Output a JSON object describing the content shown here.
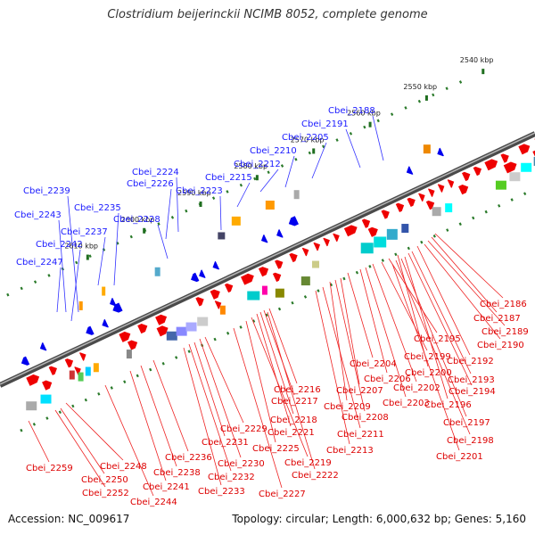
{
  "title": "Clostridium beijerinckii NCIMB 8052, complete genome",
  "footer": {
    "accession": "Accession: NC_009617",
    "summary": "Topology: circular; Length: 6,000,632 bp; Genes: 5,160"
  },
  "colors": {
    "forward_gene": "#ee0000",
    "reverse_gene": "#0000ee",
    "backbone": "#666666",
    "forward_label": "#dd0000",
    "reverse_label": "#1a1aff",
    "dotted_track": "#2a7a2a"
  },
  "ruler": [
    {
      "label": "2540 kbp",
      "kbp": 2540
    },
    {
      "label": "2550 kbp",
      "kbp": 2550
    },
    {
      "label": "2560 kbp",
      "kbp": 2560
    },
    {
      "label": "2570 kbp",
      "kbp": 2570
    },
    {
      "label": "2580 kbp",
      "kbp": 2580
    },
    {
      "label": "2590 kbp",
      "kbp": 2590
    },
    {
      "label": "2600 kbp",
      "kbp": 2600
    },
    {
      "label": "2610 kbp",
      "kbp": 2610
    }
  ],
  "reverse_labels": [
    "Cbei_2188",
    "Cbei_2191",
    "Cbei_2205",
    "Cbei_2210",
    "Cbei_2212",
    "Cbei_2215",
    "Cbei_2223",
    "Cbei_2224",
    "Cbei_2226",
    "Cbei_2228",
    "Cbei_2235",
    "Cbei_2237",
    "Cbei_2239",
    "Cbei_2243",
    "Cbei_2242",
    "Cbei_2247"
  ],
  "forward_labels": [
    "Cbei_2186",
    "Cbei_2187",
    "Cbei_2189",
    "Cbei_2190",
    "Cbei_2195",
    "Cbei_2192",
    "Cbei_2199",
    "Cbei_2193",
    "Cbei_2204",
    "Cbei_2200",
    "Cbei_2206",
    "Cbei_2194",
    "Cbei_2202",
    "Cbei_2207",
    "Cbei_2216",
    "Cbei_2196",
    "Cbei_2203",
    "Cbei_2217",
    "Cbei_2209",
    "Cbei_2197",
    "Cbei_2208",
    "Cbei_2218",
    "Cbei_2229",
    "Cbei_2211",
    "Cbei_2221",
    "Cbei_2198",
    "Cbei_2231",
    "Cbei_2225",
    "Cbei_2213",
    "Cbei_2236",
    "Cbei_2201",
    "Cbei_2230",
    "Cbei_2219",
    "Cbei_2259",
    "Cbei_2248",
    "Cbei_2238",
    "Cbei_2232",
    "Cbei_2222",
    "Cbei_2250",
    "Cbei_2241",
    "Cbei_2233",
    "Cbei_2227",
    "Cbei_2252",
    "Cbei_2244"
  ]
}
